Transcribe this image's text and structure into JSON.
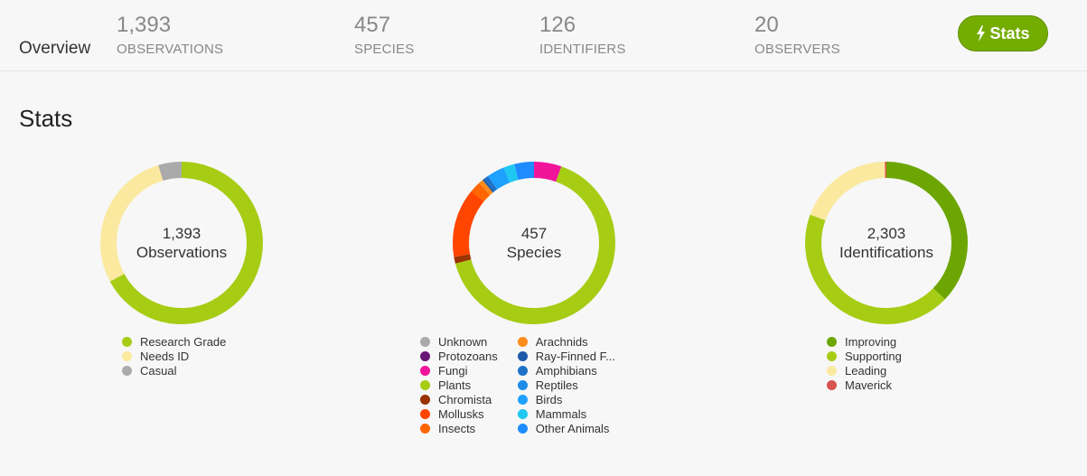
{
  "header": {
    "overview_label": "Overview",
    "stats": [
      {
        "value": "1,393",
        "label": "OBSERVATIONS"
      },
      {
        "value": "457",
        "label": "SPECIES"
      },
      {
        "value": "126",
        "label": "IDENTIFIERS"
      },
      {
        "value": "20",
        "label": "OBSERVERS"
      }
    ],
    "stats_button_label": "Stats",
    "stats_button_icon": "lightning-bolt-icon",
    "accent_color": "#74ac00"
  },
  "page_title": "Stats",
  "chart_data": [
    {
      "type": "donut",
      "center_value": "1,393",
      "center_label": "Observations",
      "series": [
        {
          "name": "Research Grade",
          "value": 935,
          "color": "#a6cc14"
        },
        {
          "name": "Needs ID",
          "value": 393,
          "color": "#fbe99f"
        },
        {
          "name": "Casual",
          "value": 65,
          "color": "#aaaaaa"
        }
      ],
      "legend_columns": [
        [
          0,
          1,
          2
        ]
      ]
    },
    {
      "type": "donut",
      "center_value": "457",
      "center_label": "Species",
      "series": [
        {
          "name": "Unknown",
          "value": 0,
          "color": "#aaaaaa"
        },
        {
          "name": "Protozoans",
          "value": 0,
          "color": "#691776"
        },
        {
          "name": "Fungi",
          "value": 25,
          "color": "#f0149b"
        },
        {
          "name": "Plants",
          "value": 299,
          "color": "#a6cc14"
        },
        {
          "name": "Chromista",
          "value": 6,
          "color": "#993300"
        },
        {
          "name": "Mollusks",
          "value": 63,
          "color": "#ff4500"
        },
        {
          "name": "Insects",
          "value": 10,
          "color": "#ff6600"
        },
        {
          "name": "Arachnids",
          "value": 4,
          "color": "#ff8c1a"
        },
        {
          "name": "Ray-Finned F...",
          "value": 2,
          "color": "#1e5aa8"
        },
        {
          "name": "Amphibians",
          "value": 4,
          "color": "#1e72c8"
        },
        {
          "name": "Reptiles",
          "value": 0,
          "color": "#1e8ce6"
        },
        {
          "name": "Birds",
          "value": 16,
          "color": "#1ea0ff"
        },
        {
          "name": "Mammals",
          "value": 10,
          "color": "#1ec8f0"
        },
        {
          "name": "Other Animals",
          "value": 18,
          "color": "#1e8cff"
        }
      ],
      "legend_columns": [
        [
          0,
          1,
          2,
          3,
          4,
          5,
          6
        ],
        [
          7,
          8,
          9,
          10,
          11,
          12,
          13
        ]
      ]
    },
    {
      "type": "donut",
      "center_value": "2,303",
      "center_label": "Identifications",
      "series": [
        {
          "name": "Improving",
          "value": 857,
          "color": "#6da602"
        },
        {
          "name": "Supporting",
          "value": 1000,
          "color": "#a6cc14"
        },
        {
          "name": "Leading",
          "value": 438,
          "color": "#fbe99f"
        },
        {
          "name": "Maverick",
          "value": 8,
          "color": "#d9534f"
        }
      ],
      "legend_columns": [
        [
          0,
          1,
          2,
          3
        ]
      ]
    }
  ]
}
